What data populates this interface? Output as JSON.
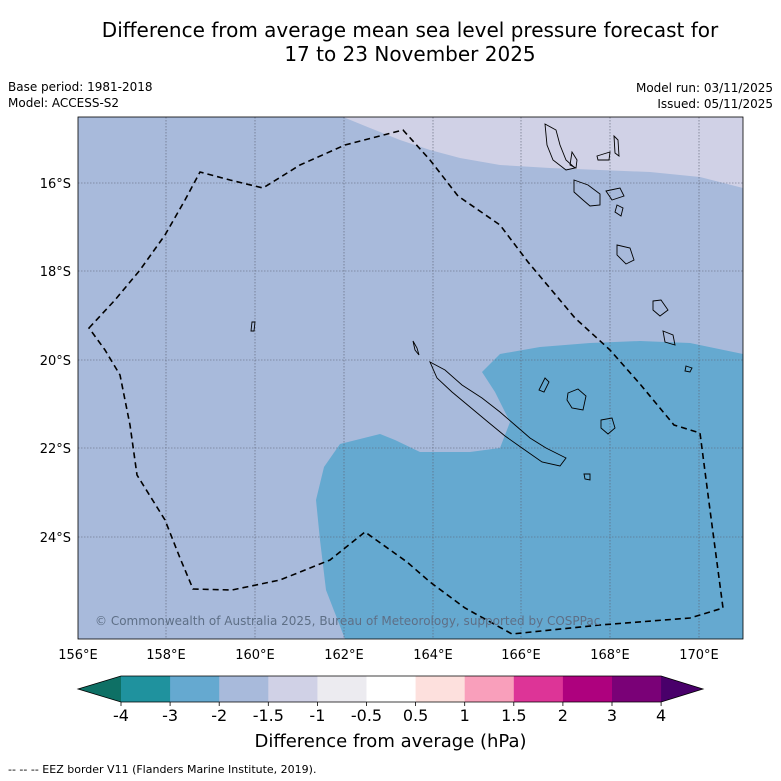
{
  "title": {
    "line1": "Difference from average mean sea level pressure forecast for",
    "line2": "17 to 23 November 2025"
  },
  "meta": {
    "base_period": "Base period: 1981-2018",
    "model": "Model: ACCESS-S2",
    "model_run": "Model run: 03/11/2025",
    "issued": "Issued: 05/11/2025"
  },
  "axes": {
    "lat_labels": [
      "16°S",
      "18°S",
      "20°S",
      "22°S",
      "24°S"
    ],
    "lon_labels": [
      "156°E",
      "158°E",
      "160°E",
      "162°E",
      "164°E",
      "166°E",
      "168°E",
      "170°E"
    ]
  },
  "colorbar": {
    "ticks": [
      "-4",
      "-3",
      "-2",
      "-1.5",
      "-1",
      "-0.5",
      "0.5",
      "1",
      "1.5",
      "2",
      "3",
      "4"
    ],
    "colors": [
      "#0e7065",
      "#1f929e",
      "#65a9d0",
      "#a8badb",
      "#d0d1e6",
      "#ecebf0",
      "#ffffff",
      "#fde0dd",
      "#f99fbb",
      "#dd3497",
      "#ae017e",
      "#7a0177",
      "#49006a"
    ],
    "label": "Difference from average (hPa)"
  },
  "map_colors": {
    "band_minus2_to_minus1_5": "#a8badb",
    "band_minus1_5_to_minus1": "#d0d1e6",
    "band_minus3_to_minus2": "#65a9d0"
  },
  "copyright": "© Commonwealth of Australia 2025, Bureau of Meteorology, supported by COSPPac",
  "footnote": "--  --  -- EEZ border V11 (Flanders Marine Institute, 2019)."
}
